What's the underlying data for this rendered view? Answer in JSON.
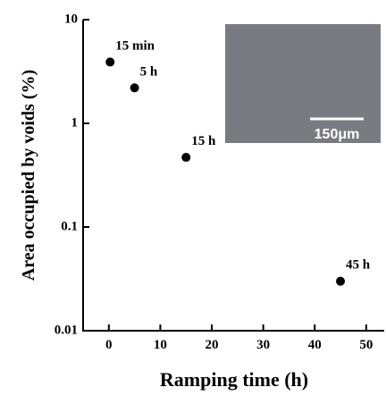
{
  "chart_data": {
    "type": "scatter",
    "x_label": "Ramping time (h)",
    "y_label": "Area occupied by voids (%)",
    "x": [
      0.25,
      5,
      15,
      45
    ],
    "values": [
      3.9,
      2.2,
      0.47,
      0.03
    ],
    "point_labels": [
      "15 min",
      "5 h",
      "15 h",
      "45 h"
    ],
    "color": "#000000",
    "xlim": [
      -5,
      53.5
    ],
    "xticks": [
      0,
      10,
      20,
      30,
      40,
      50
    ],
    "ylim": [
      0.01,
      10
    ],
    "yticks": [
      0.01,
      0.1,
      1,
      10
    ],
    "log_y": true,
    "inset": {
      "scale_label": "150μm"
    }
  }
}
